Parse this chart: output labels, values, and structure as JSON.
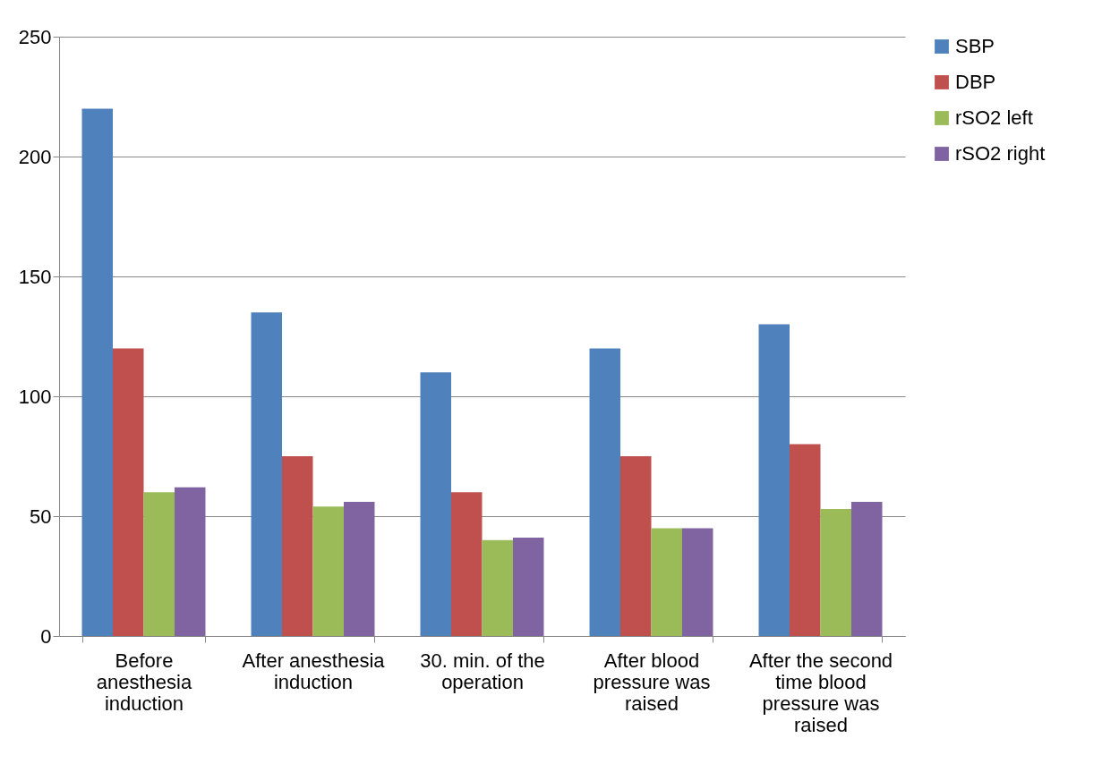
{
  "chart_data": {
    "type": "bar",
    "categories": [
      "Before anesthesia induction",
      "After anesthesia induction",
      "30. min. of the operation",
      "After blood pressure was raised",
      "After the second time blood pressure was raised"
    ],
    "series": [
      {
        "name": "SBP",
        "color": "#4f81bd",
        "values": [
          220,
          135,
          110,
          120,
          130
        ]
      },
      {
        "name": "DBP",
        "color": "#c0504d",
        "values": [
          120,
          75,
          60,
          75,
          80
        ]
      },
      {
        "name": "rSO2 left",
        "color": "#9bbb59",
        "values": [
          60,
          54,
          40,
          45,
          53
        ]
      },
      {
        "name": "rSO2 right",
        "color": "#8064a2",
        "values": [
          62,
          56,
          41,
          45,
          56
        ]
      }
    ],
    "ylim": [
      0,
      250
    ],
    "yticks": [
      0,
      50,
      100,
      150,
      200,
      250
    ],
    "grid": "y",
    "legend": "right"
  }
}
